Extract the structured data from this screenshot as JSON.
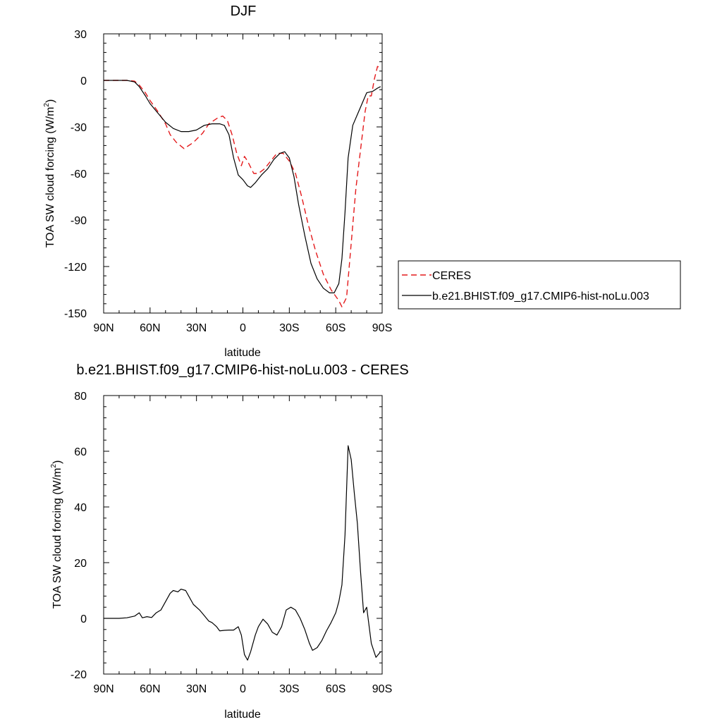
{
  "chart_data": [
    {
      "type": "line",
      "title": "DJF",
      "xlabel": "latitude",
      "ylabel_main": "TOA SW cloud forcing (W/m",
      "ylabel_sup": "2",
      "ylabel_close": ")",
      "xlim": [
        90,
        -90
      ],
      "ylim": [
        -150,
        30
      ],
      "xticks": [
        {
          "v": 90,
          "label": "90N"
        },
        {
          "v": 60,
          "label": "60N"
        },
        {
          "v": 30,
          "label": "30N"
        },
        {
          "v": 0,
          "label": "0"
        },
        {
          "v": -30,
          "label": "30S"
        },
        {
          "v": -60,
          "label": "60S"
        },
        {
          "v": -90,
          "label": "90S"
        }
      ],
      "yticks": [
        30,
        0,
        -30,
        -60,
        -90,
        -120,
        -150
      ],
      "legend_position": "right",
      "series": [
        {
          "name": "CERES",
          "color": "#e41a1c",
          "dash": "dashed",
          "points": [
            [
              90,
              0
            ],
            [
              80,
              0
            ],
            [
              75,
              0
            ],
            [
              70,
              -0.5
            ],
            [
              67,
              -3
            ],
            [
              63,
              -8
            ],
            [
              60,
              -13
            ],
            [
              55,
              -20
            ],
            [
              50,
              -28
            ],
            [
              47,
              -35
            ],
            [
              43,
              -40
            ],
            [
              38,
              -44
            ],
            [
              32,
              -40
            ],
            [
              26,
              -34
            ],
            [
              22,
              -28
            ],
            [
              19,
              -26
            ],
            [
              16,
              -24
            ],
            [
              13,
              -23
            ],
            [
              10,
              -26
            ],
            [
              7,
              -35
            ],
            [
              4,
              -47
            ],
            [
              1,
              -55
            ],
            [
              -1,
              -49
            ],
            [
              -3,
              -52
            ],
            [
              -7,
              -60
            ],
            [
              -10,
              -60
            ],
            [
              -14,
              -57
            ],
            [
              -18,
              -52
            ],
            [
              -22,
              -47
            ],
            [
              -26,
              -47
            ],
            [
              -30,
              -52
            ],
            [
              -34,
              -60
            ],
            [
              -38,
              -75
            ],
            [
              -42,
              -92
            ],
            [
              -47,
              -110
            ],
            [
              -52,
              -125
            ],
            [
              -57,
              -135
            ],
            [
              -62,
              -142
            ],
            [
              -64,
              -146
            ],
            [
              -67,
              -140
            ],
            [
              -70,
              -105
            ],
            [
              -73,
              -70
            ],
            [
              -76,
              -45
            ],
            [
              -79,
              -20
            ],
            [
              -81,
              -10
            ],
            [
              -83,
              -10
            ],
            [
              -85,
              1
            ],
            [
              -87,
              9
            ],
            [
              -89,
              8
            ]
          ]
        },
        {
          "name": "b.e21.BHIST.f09_g17.CMIP6-hist-noLu.003",
          "color": "#000000",
          "dash": "solid",
          "points": [
            [
              90,
              0
            ],
            [
              80,
              0
            ],
            [
              75,
              0
            ],
            [
              70,
              -1
            ],
            [
              67,
              -4
            ],
            [
              63,
              -10
            ],
            [
              60,
              -15
            ],
            [
              55,
              -21
            ],
            [
              50,
              -27
            ],
            [
              45,
              -31
            ],
            [
              40,
              -33
            ],
            [
              35,
              -33
            ],
            [
              30,
              -32
            ],
            [
              25,
              -29
            ],
            [
              20,
              -28
            ],
            [
              15,
              -28
            ],
            [
              12,
              -29
            ],
            [
              9,
              -35
            ],
            [
              6,
              -50
            ],
            [
              3,
              -61
            ],
            [
              0,
              -64
            ],
            [
              -3,
              -68
            ],
            [
              -5,
              -69
            ],
            [
              -8,
              -66
            ],
            [
              -12,
              -61
            ],
            [
              -16,
              -57
            ],
            [
              -20,
              -51
            ],
            [
              -24,
              -47
            ],
            [
              -27,
              -46
            ],
            [
              -30,
              -50
            ],
            [
              -33,
              -62
            ],
            [
              -36,
              -80
            ],
            [
              -40,
              -100
            ],
            [
              -44,
              -118
            ],
            [
              -48,
              -128
            ],
            [
              -52,
              -134
            ],
            [
              -56,
              -137
            ],
            [
              -59,
              -137
            ],
            [
              -62,
              -131
            ],
            [
              -64,
              -115
            ],
            [
              -66,
              -85
            ],
            [
              -68,
              -50
            ],
            [
              -71,
              -29
            ],
            [
              -74,
              -22
            ],
            [
              -77,
              -15
            ],
            [
              -80,
              -8
            ],
            [
              -84,
              -7
            ],
            [
              -87,
              -5
            ],
            [
              -89,
              -4
            ]
          ]
        }
      ]
    },
    {
      "type": "line",
      "title": "b.e21.BHIST.f09_g17.CMIP6-hist-noLu.003 - CERES",
      "xlabel": "latitude",
      "ylabel_main": "TOA SW cloud forcing (W/m",
      "ylabel_sup": "2",
      "ylabel_close": ")",
      "xlim": [
        90,
        -90
      ],
      "ylim": [
        -20,
        80
      ],
      "xticks": [
        {
          "v": 90,
          "label": "90N"
        },
        {
          "v": 60,
          "label": "60N"
        },
        {
          "v": 30,
          "label": "30N"
        },
        {
          "v": 0,
          "label": "0"
        },
        {
          "v": -30,
          "label": "30S"
        },
        {
          "v": -60,
          "label": "60S"
        },
        {
          "v": -90,
          "label": "90S"
        }
      ],
      "yticks": [
        80,
        60,
        40,
        20,
        0,
        -20
      ],
      "series": [
        {
          "color": "#000000",
          "dash": "solid",
          "points": [
            [
              90,
              0
            ],
            [
              80,
              0
            ],
            [
              75,
              0.2
            ],
            [
              70,
              0.8
            ],
            [
              67,
              2
            ],
            [
              65,
              0.2
            ],
            [
              62,
              0.6
            ],
            [
              59,
              0.3
            ],
            [
              56,
              2
            ],
            [
              53,
              3
            ],
            [
              50,
              6
            ],
            [
              47,
              9
            ],
            [
              45,
              10
            ],
            [
              42,
              9.5
            ],
            [
              40,
              10.5
            ],
            [
              37,
              10
            ],
            [
              35,
              8
            ],
            [
              32,
              5
            ],
            [
              28,
              3
            ],
            [
              25,
              1
            ],
            [
              22,
              -1
            ],
            [
              20,
              -1.5
            ],
            [
              17,
              -3
            ],
            [
              15,
              -4.5
            ],
            [
              12,
              -4.3
            ],
            [
              9,
              -4.2
            ],
            [
              6,
              -4.2
            ],
            [
              3,
              -3
            ],
            [
              1,
              -6
            ],
            [
              -1,
              -13
            ],
            [
              -3,
              -15
            ],
            [
              -5,
              -12
            ],
            [
              -8,
              -6
            ],
            [
              -10,
              -3
            ],
            [
              -13,
              -0.3
            ],
            [
              -16,
              -2
            ],
            [
              -19,
              -5
            ],
            [
              -22,
              -6
            ],
            [
              -25,
              -3
            ],
            [
              -28,
              3
            ],
            [
              -31,
              4
            ],
            [
              -34,
              3
            ],
            [
              -37,
              0
            ],
            [
              -40,
              -4
            ],
            [
              -43,
              -9
            ],
            [
              -45,
              -11.5
            ],
            [
              -48,
              -10.5
            ],
            [
              -51,
              -8
            ],
            [
              -54,
              -4.5
            ],
            [
              -57,
              -1.5
            ],
            [
              -60,
              2
            ],
            [
              -62,
              6
            ],
            [
              -64,
              12
            ],
            [
              -66,
              30
            ],
            [
              -68,
              62
            ],
            [
              -70,
              57
            ],
            [
              -72,
              45
            ],
            [
              -74,
              34
            ],
            [
              -76,
              17
            ],
            [
              -78,
              2
            ],
            [
              -80,
              4
            ],
            [
              -83,
              -9
            ],
            [
              -86,
              -14
            ],
            [
              -89,
              -12
            ]
          ]
        }
      ]
    }
  ]
}
